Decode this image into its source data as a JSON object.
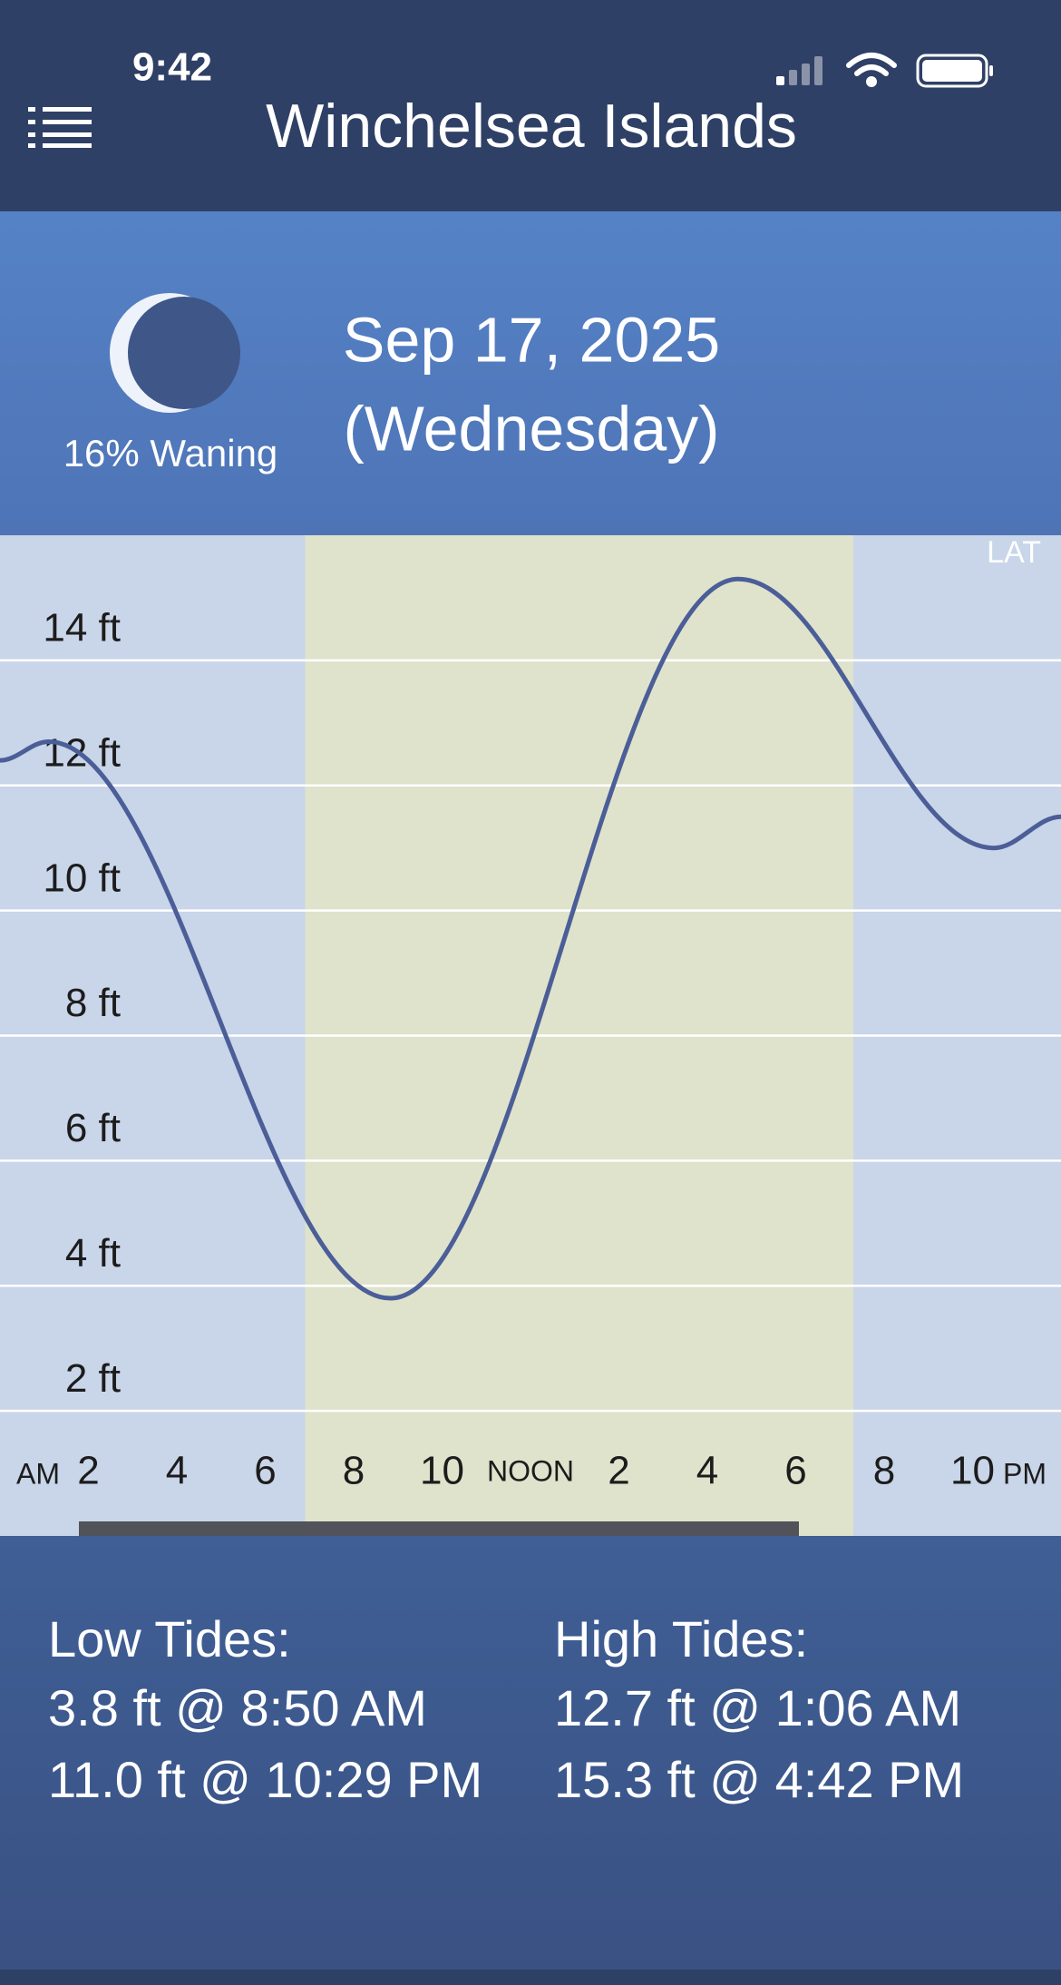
{
  "status_bar": {
    "time": "9:42"
  },
  "header": {
    "title": "Winchelsea Islands"
  },
  "moon": {
    "phase": "16% Waning"
  },
  "date": {
    "line1": "Sep 17, 2025",
    "line2": "(Wednesday)"
  },
  "chart_data": {
    "type": "line",
    "datum_label": "LAT",
    "x": [
      0,
      1.1,
      8.833,
      16.7,
      22.483,
      24
    ],
    "series": [
      {
        "color": "#4b5e98",
        "values": [
          12.4,
          12.7,
          3.8,
          15.3,
          11.0,
          11.5
        ]
      }
    ],
    "xlim": [
      0,
      24
    ],
    "ylim": [
      0,
      16
    ],
    "yticks": [
      {
        "value": 2,
        "label": "2 ft"
      },
      {
        "value": 4,
        "label": "4 ft"
      },
      {
        "value": 6,
        "label": "6 ft"
      },
      {
        "value": 8,
        "label": "8 ft"
      },
      {
        "value": 10,
        "label": "10 ft"
      },
      {
        "value": 12,
        "label": "12 ft"
      },
      {
        "value": 14,
        "label": "14 ft"
      }
    ],
    "xticks": [
      2,
      4,
      6,
      8,
      10,
      {
        "value": 12,
        "label": "NOON"
      },
      {
        "value": 14,
        "label": "2"
      },
      {
        "value": 16,
        "label": "4"
      },
      {
        "value": 18,
        "label": "6"
      },
      {
        "value": 20,
        "label": "8"
      },
      {
        "value": 22,
        "label": "10"
      }
    ],
    "am_label": "AM",
    "pm_label": "PM",
    "daylight_hours": [
      6.9,
      19.3
    ],
    "grid": true
  },
  "tides": {
    "low_title": "Low Tides:",
    "low": [
      "3.8 ft @ 8:50 AM",
      "11.0 ft @ 10:29 PM"
    ],
    "high_title": "High Tides:",
    "high": [
      "12.7 ft @ 1:06 AM",
      "15.3 ft @ 4:42 PM"
    ]
  }
}
